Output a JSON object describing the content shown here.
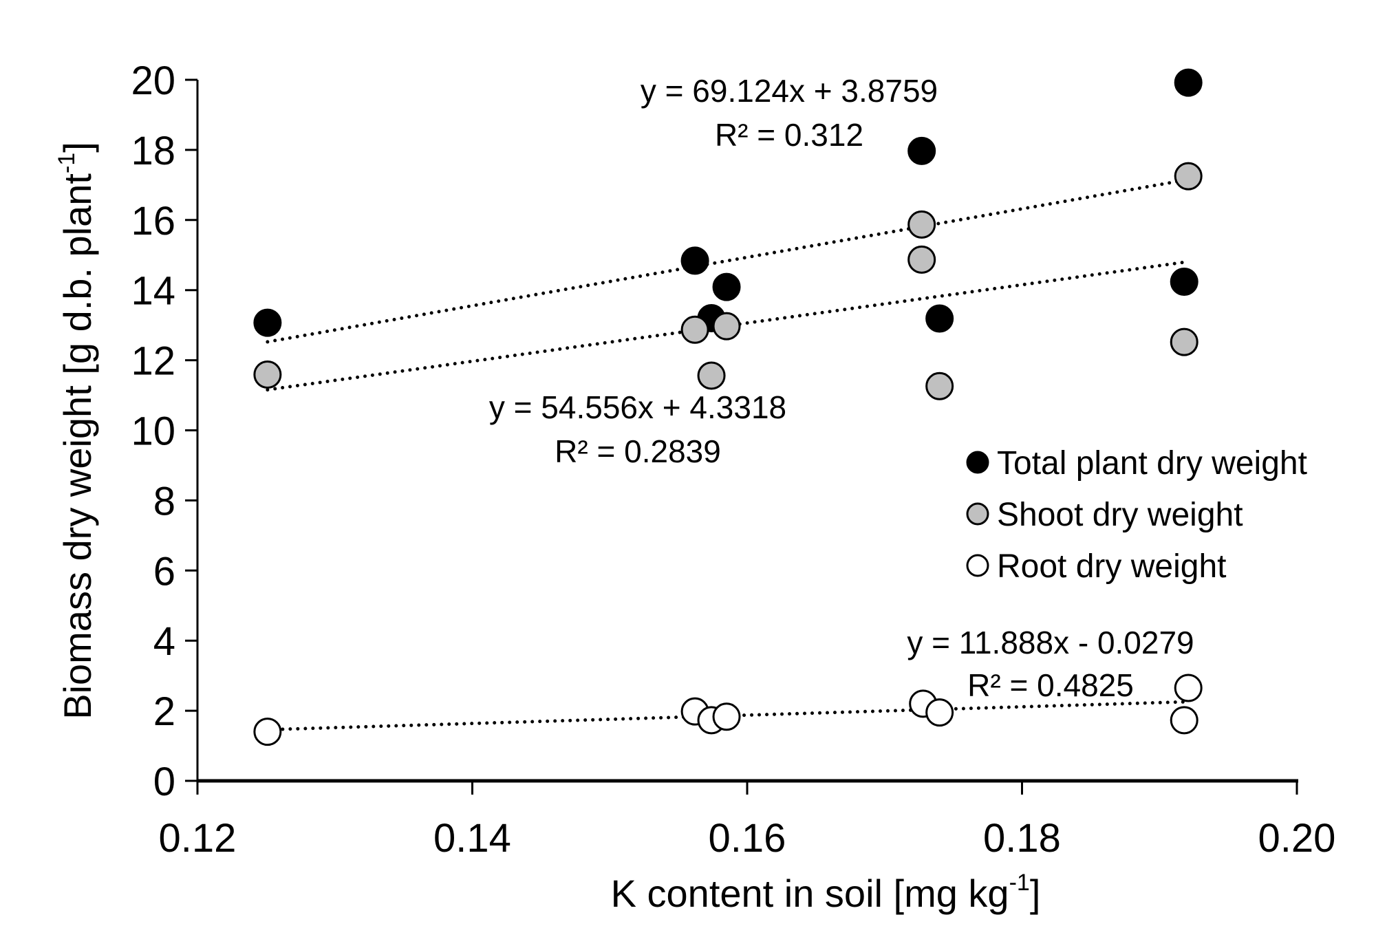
{
  "chart_data": {
    "type": "scatter",
    "title": "",
    "xlabel": "K content in soil [mg kg",
    "xlabel_sup": "-1",
    "xlabel_end": "]",
    "ylabel": "Biomass dry weight [g d.b. plant",
    "ylabel_sup": "-1",
    "ylabel_end": "]",
    "xlim": [
      0.12,
      0.2
    ],
    "ylim": [
      0,
      20
    ],
    "xticks": [
      0.12,
      0.14,
      0.16,
      0.18,
      0.2
    ],
    "xtick_labels": [
      "0.12",
      "0.14",
      "0.16",
      "0.18",
      "0.20"
    ],
    "yticks": [
      0,
      2,
      4,
      6,
      8,
      10,
      12,
      14,
      16,
      18,
      20
    ],
    "ytick_labels": [
      "0",
      "2",
      "4",
      "6",
      "8",
      "10",
      "12",
      "14",
      "16",
      "18",
      "20"
    ],
    "grid": false,
    "legend_position": "center-right",
    "series": [
      {
        "name": "Total plant dry weight",
        "fill": "#000000",
        "x": [
          0.1251,
          0.1562,
          0.1585,
          0.1574,
          0.1727,
          0.174,
          0.1921,
          0.1918
        ],
        "y": [
          13.07,
          14.84,
          14.09,
          13.2,
          17.97,
          13.19,
          19.92,
          14.24
        ],
        "trend": {
          "slope": 69.124,
          "intercept": 3.8759,
          "x_range": [
            0.1251,
            0.1921
          ],
          "equation": "y = 69.124x + 3.8759",
          "r2": "R² = 0.312"
        }
      },
      {
        "name": "Shoot dry weight",
        "fill": "#c0c0c0",
        "x": [
          0.1251,
          0.1562,
          0.1585,
          0.1574,
          0.1727,
          0.1727,
          0.174,
          0.1921,
          0.1918
        ],
        "y": [
          11.59,
          12.87,
          12.97,
          11.56,
          15.87,
          14.87,
          11.26,
          17.25,
          12.52
        ],
        "trend": {
          "slope": 54.556,
          "intercept": 4.3318,
          "x_range": [
            0.1251,
            0.1918
          ],
          "equation": "y = 54.556x + 4.3318",
          "r2": "R² = 0.2839"
        }
      },
      {
        "name": "Root dry weight",
        "fill": "#ffffff",
        "x": [
          0.1251,
          0.1562,
          0.1574,
          0.1585,
          0.1728,
          0.174,
          0.1921,
          0.1918
        ],
        "y": [
          1.4,
          1.98,
          1.73,
          1.83,
          2.2,
          1.95,
          2.65,
          1.73
        ],
        "trend": {
          "slope": 11.888,
          "intercept": -0.0279,
          "x_range": [
            0.1251,
            0.1918
          ],
          "equation": "y = 11.888x - 0.0279",
          "r2": "R² = 0.4825"
        }
      }
    ]
  }
}
